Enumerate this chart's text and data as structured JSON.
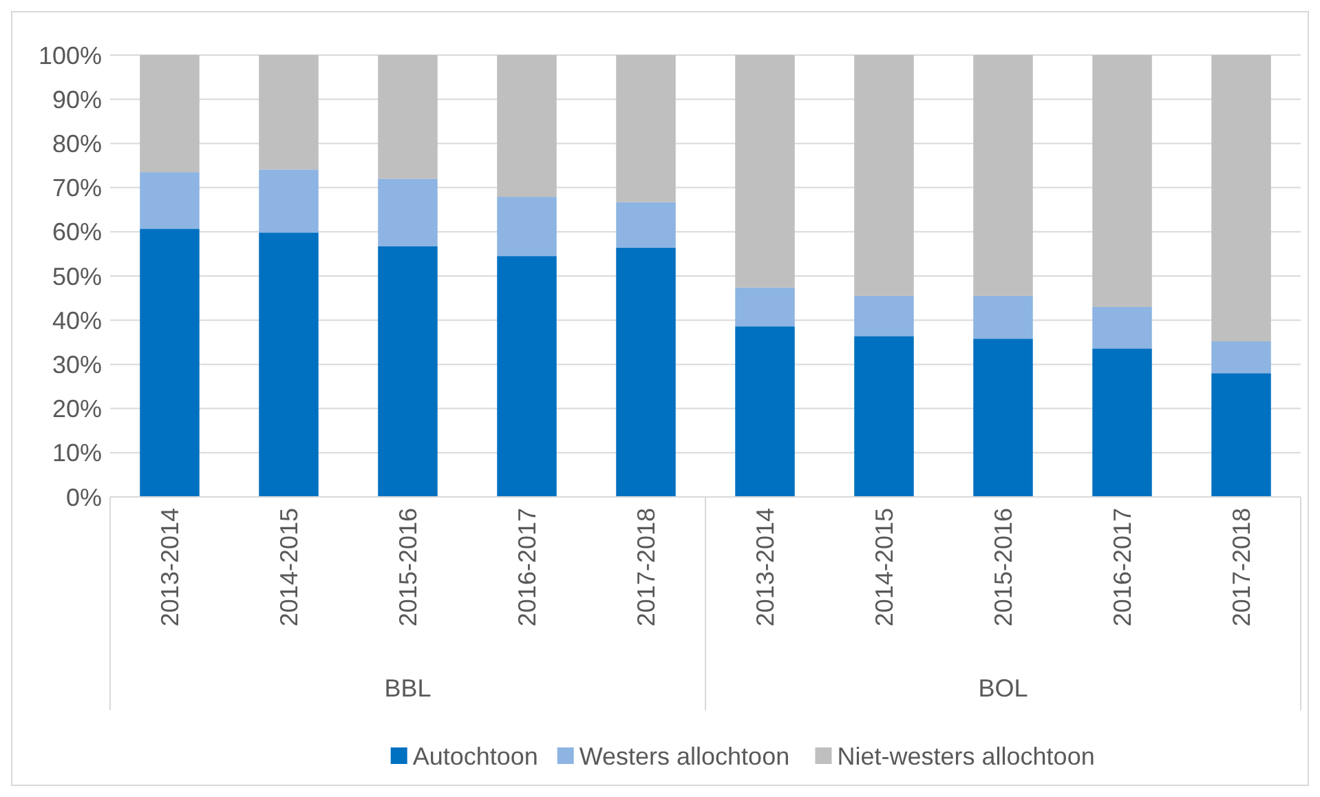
{
  "chart_data": {
    "type": "bar",
    "stacked": true,
    "categories": [
      "2013-2014",
      "2014-2015",
      "2015-2016",
      "2016-2017",
      "2017-2018",
      "2013-2014",
      "2014-2015",
      "2015-2016",
      "2016-2017",
      "2017-2018"
    ],
    "annotations": [
      "BBL",
      "BOL"
    ],
    "series": [
      {
        "name": "Autochtoon",
        "color": "#0070c0",
        "values": [
          60.7,
          59.8,
          56.7,
          54.5,
          56.4,
          38.6,
          36.4,
          35.8,
          33.6,
          28.0
        ]
      },
      {
        "name": "Westers allochtoon",
        "color": "#8db4e2",
        "values": [
          12.8,
          14.3,
          15.3,
          13.4,
          10.3,
          8.8,
          9.1,
          9.7,
          9.4,
          7.2
        ]
      },
      {
        "name": "Niet-westers allochtoon",
        "color": "#bfbfbf",
        "values": [
          26.5,
          25.9,
          28.0,
          32.1,
          33.3,
          52.6,
          54.5,
          54.5,
          57.0,
          64.8
        ]
      }
    ],
    "ylim": [
      0,
      100
    ],
    "yticks": [
      {
        "value": 0,
        "label": "0%"
      },
      {
        "value": 10,
        "label": "10%"
      },
      {
        "value": 20,
        "label": "20%"
      },
      {
        "value": 30,
        "label": "30%"
      },
      {
        "value": 40,
        "label": "40%"
      },
      {
        "value": 50,
        "label": "50%"
      },
      {
        "value": 60,
        "label": "60%"
      },
      {
        "value": 70,
        "label": "70%"
      },
      {
        "value": 80,
        "label": "80%"
      },
      {
        "value": 90,
        "label": "90%"
      },
      {
        "value": 100,
        "label": "100%"
      }
    ],
    "grid": "y",
    "legend": "bottom"
  }
}
